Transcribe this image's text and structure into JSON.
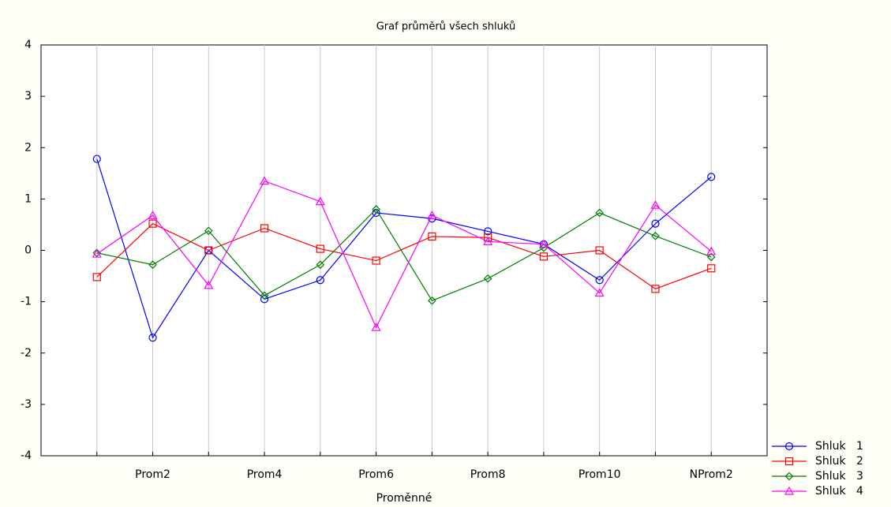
{
  "chart_data": {
    "type": "line",
    "title": "Graf průměrů všech shluků",
    "x_label": "Proměnné",
    "categories": [
      null,
      "Prom2",
      null,
      "Prom4",
      null,
      "Prom6",
      null,
      "Prom8",
      null,
      "Prom10",
      null,
      "NProm2"
    ],
    "series": [
      {
        "name": "Shluk   1",
        "color": "#0000ff",
        "marker": "circle",
        "values": [
          1.78,
          -1.7,
          0.0,
          -0.95,
          -0.58,
          0.73,
          0.62,
          0.37,
          0.12,
          -0.58,
          0.52,
          1.43
        ]
      },
      {
        "name": "Shluk   2",
        "color": "#ff0000",
        "marker": "square",
        "values": [
          -0.52,
          0.52,
          0.0,
          0.43,
          0.03,
          -0.2,
          0.27,
          0.25,
          -0.12,
          0.0,
          -0.75,
          -0.35
        ]
      },
      {
        "name": "Shluk   3",
        "color": "#008000",
        "marker": "diamond",
        "values": [
          -0.05,
          -0.28,
          0.38,
          -0.88,
          -0.28,
          0.8,
          -0.98,
          -0.55,
          0.05,
          0.73,
          0.28,
          -0.13
        ]
      },
      {
        "name": "Shluk   4",
        "color": "#ff00ff",
        "marker": "triangle",
        "values": [
          -0.07,
          0.68,
          -0.68,
          1.35,
          0.95,
          -1.5,
          0.68,
          0.17,
          0.12,
          -0.83,
          0.88,
          -0.02
        ]
      }
    ],
    "ylim": [
      -4,
      4
    ],
    "yticks": [
      -4,
      -3,
      -2,
      -1,
      0,
      1,
      2,
      3,
      4
    ],
    "xgrid": true,
    "legend": "bottom-right"
  }
}
